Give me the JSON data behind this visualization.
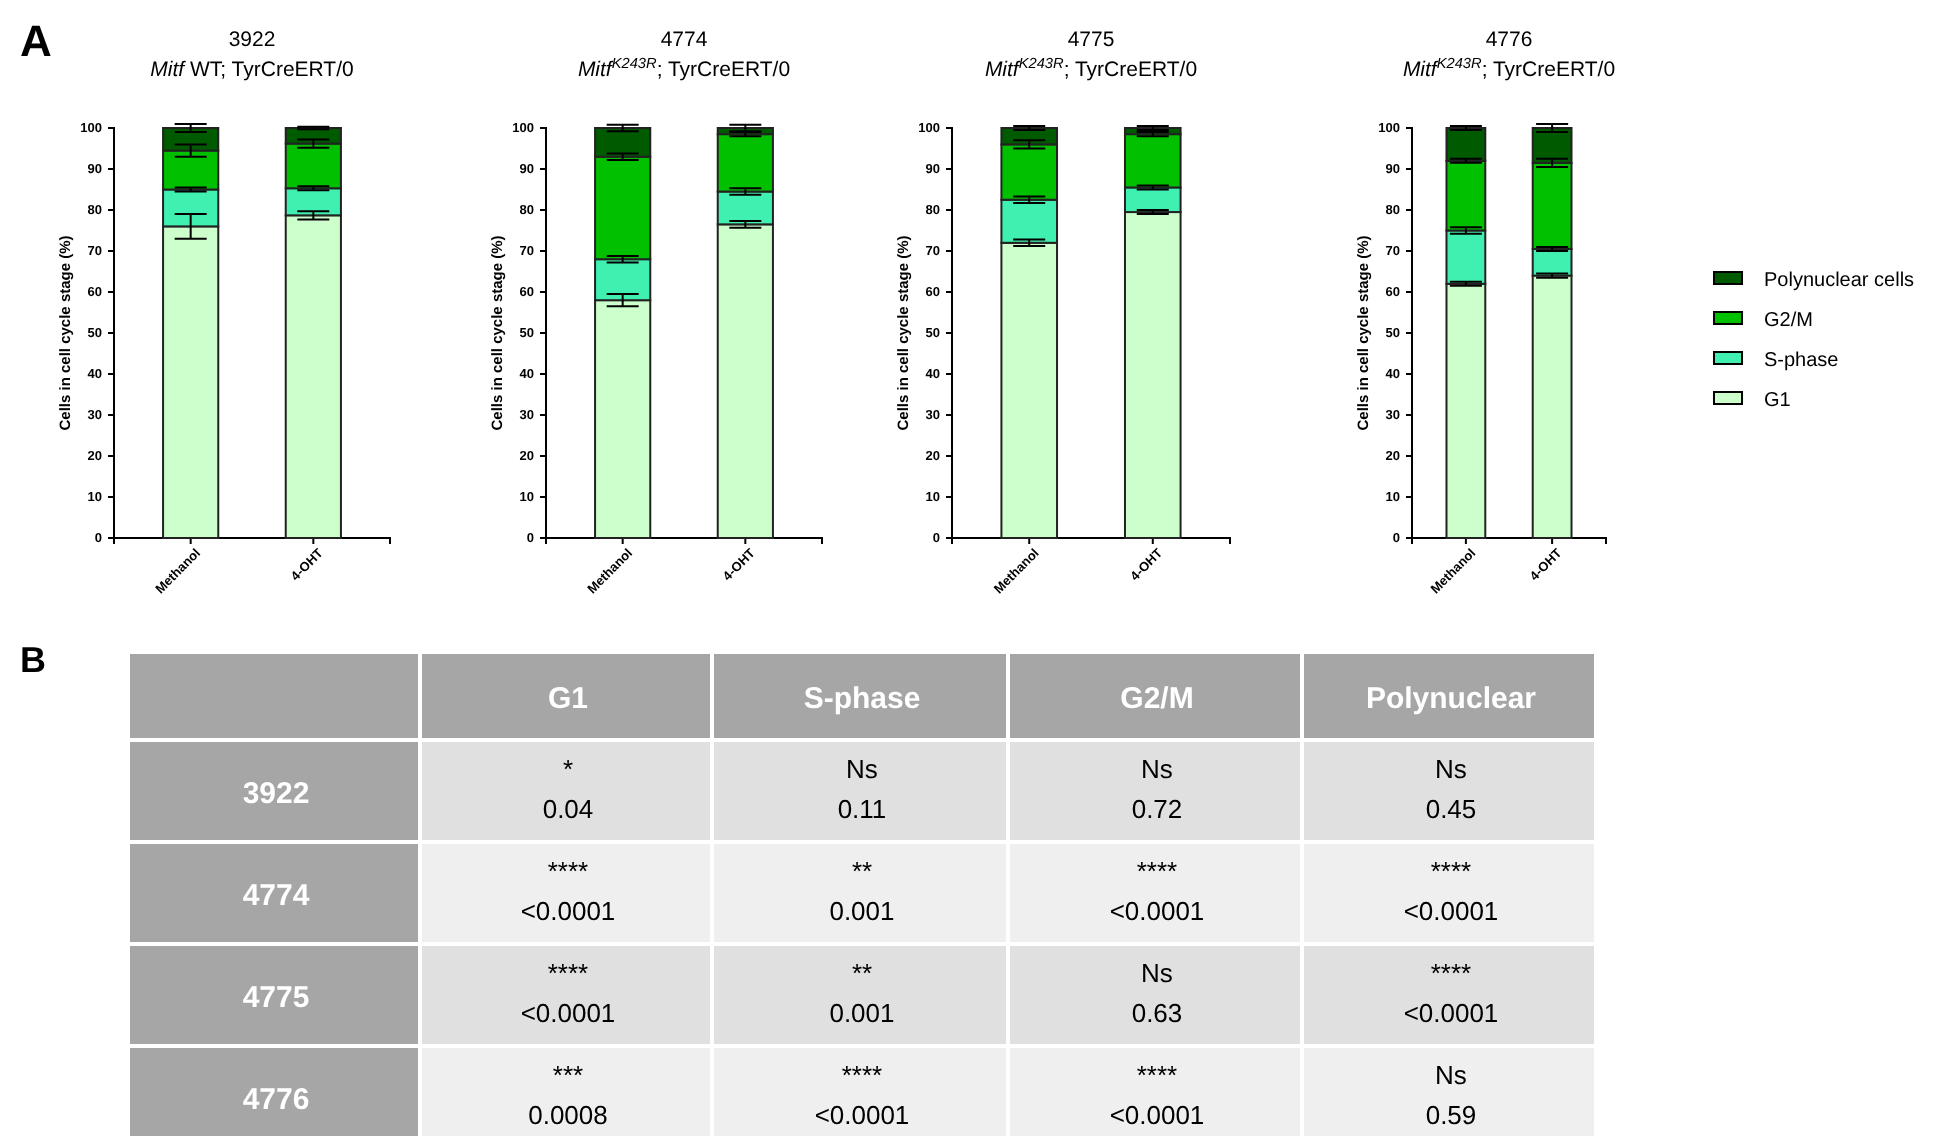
{
  "chart_data": [
    {
      "type": "bar",
      "stacked": true,
      "title": "3922",
      "subtitle": "Mitf WT; TyrCreERT/0",
      "annotations": [
        "A"
      ],
      "ylabel": "Cells in cell cycle stage (%)",
      "categories": [
        "Methanol",
        "4-OHT"
      ],
      "ylim": [
        0,
        100
      ],
      "yticks": [
        0,
        10,
        20,
        30,
        40,
        50,
        60,
        70,
        80,
        90,
        100
      ],
      "legend": false,
      "series": [
        {
          "color": "#ccffcc",
          "values": [
            76,
            78.7
          ],
          "errors": [
            3,
            1
          ]
        },
        {
          "color": "#40f0b0",
          "values": [
            9,
            6.6
          ],
          "errors": [
            0.5,
            0.5
          ]
        },
        {
          "color": "#00c000",
          "values": [
            9.5,
            10.9
          ],
          "errors": [
            1.5,
            1
          ]
        },
        {
          "color": "#005a00",
          "values": [
            5.5,
            3.8
          ],
          "errors": [
            1,
            0.3
          ]
        }
      ]
    },
    {
      "type": "bar",
      "stacked": true,
      "title": "4774",
      "subtitle": "Mitf$^{K243R}$; TyrCreERT/0",
      "ylabel": "Cells in cell cycle stage (%)",
      "categories": [
        "Methanol",
        "4-OHT"
      ],
      "ylim": [
        0,
        100
      ],
      "yticks": [
        0,
        10,
        20,
        30,
        40,
        50,
        60,
        70,
        80,
        90,
        100
      ],
      "legend": false,
      "series": [
        {
          "color": "#ccffcc",
          "values": [
            58,
            76.5
          ],
          "errors": [
            1.5,
            0.8
          ]
        },
        {
          "color": "#40f0b0",
          "values": [
            10,
            8
          ],
          "errors": [
            0.8,
            0.8
          ]
        },
        {
          "color": "#00c000",
          "values": [
            25,
            14
          ],
          "errors": [
            0.8,
            0.5
          ]
        },
        {
          "color": "#005a00",
          "values": [
            7,
            1.5
          ],
          "errors": [
            0.8,
            0.8
          ]
        }
      ]
    },
    {
      "type": "bar",
      "stacked": true,
      "title": "4775",
      "subtitle": "Mitf$^{K243R}$; TyrCreERT/0",
      "ylabel": "Cells in cell cycle stage (%)",
      "categories": [
        "Methanol",
        "4-OHT"
      ],
      "ylim": [
        0,
        100
      ],
      "yticks": [
        0,
        10,
        20,
        30,
        40,
        50,
        60,
        70,
        80,
        90,
        100
      ],
      "legend": false,
      "series": [
        {
          "color": "#ccffcc",
          "values": [
            72,
            79.5
          ],
          "errors": [
            0.8,
            0.5
          ]
        },
        {
          "color": "#40f0b0",
          "values": [
            10.5,
            6
          ],
          "errors": [
            0.8,
            0.5
          ]
        },
        {
          "color": "#00c000",
          "values": [
            13.5,
            13
          ],
          "errors": [
            1,
            0.5
          ]
        },
        {
          "color": "#005a00",
          "values": [
            4,
            1.5
          ],
          "errors": [
            0.5,
            0.5
          ]
        }
      ]
    },
    {
      "type": "bar",
      "stacked": true,
      "title": "4776",
      "subtitle": "Mitf$^{K243R}$; TyrCreERT/0",
      "ylabel": "Cells in cell cycle stage (%)",
      "categories": [
        "Methanol",
        "4-OHT"
      ],
      "ylim": [
        0,
        100
      ],
      "yticks": [
        0,
        10,
        20,
        30,
        40,
        50,
        60,
        70,
        80,
        90,
        100
      ],
      "legend": "right",
      "series": [
        {
          "name": "G1",
          "color": "#ccffcc",
          "values": [
            62,
            64
          ],
          "errors": [
            0.5,
            0.5
          ]
        },
        {
          "name": "S-phase",
          "color": "#40f0b0",
          "values": [
            13,
            6.5
          ],
          "errors": [
            0.8,
            0.5
          ]
        },
        {
          "name": "G2/M",
          "color": "#00c000",
          "values": [
            17,
            21
          ],
          "errors": [
            0.5,
            1
          ]
        },
        {
          "name": "Polynuclear cells",
          "color": "#005a00",
          "values": [
            8,
            8.5
          ],
          "errors": [
            0.5,
            1
          ]
        }
      ]
    },
    {
      "type": "other",
      "annotations": [
        "B"
      ],
      "categories": [
        "G1",
        "S-phase",
        "G2/M",
        "Polynuclear"
      ],
      "y_categories": [
        "3922",
        "4774",
        "4775",
        "4776"
      ],
      "cell_labels": [
        [
          "*\n0.04",
          "Ns\n0.11",
          "Ns\n0.72",
          "Ns\n0.45"
        ],
        [
          "****\n<0.0001",
          "**\n0.001",
          "****\n<0.0001",
          "****\n<0.0001"
        ],
        [
          "****\n<0.0001",
          "**\n0.001",
          "Ns\n0.63",
          "****\n<0.0001"
        ],
        [
          "***\n0.0008",
          "****\n<0.0001",
          "****\n<0.0001",
          "Ns\n0.59"
        ]
      ]
    }
  ]
}
